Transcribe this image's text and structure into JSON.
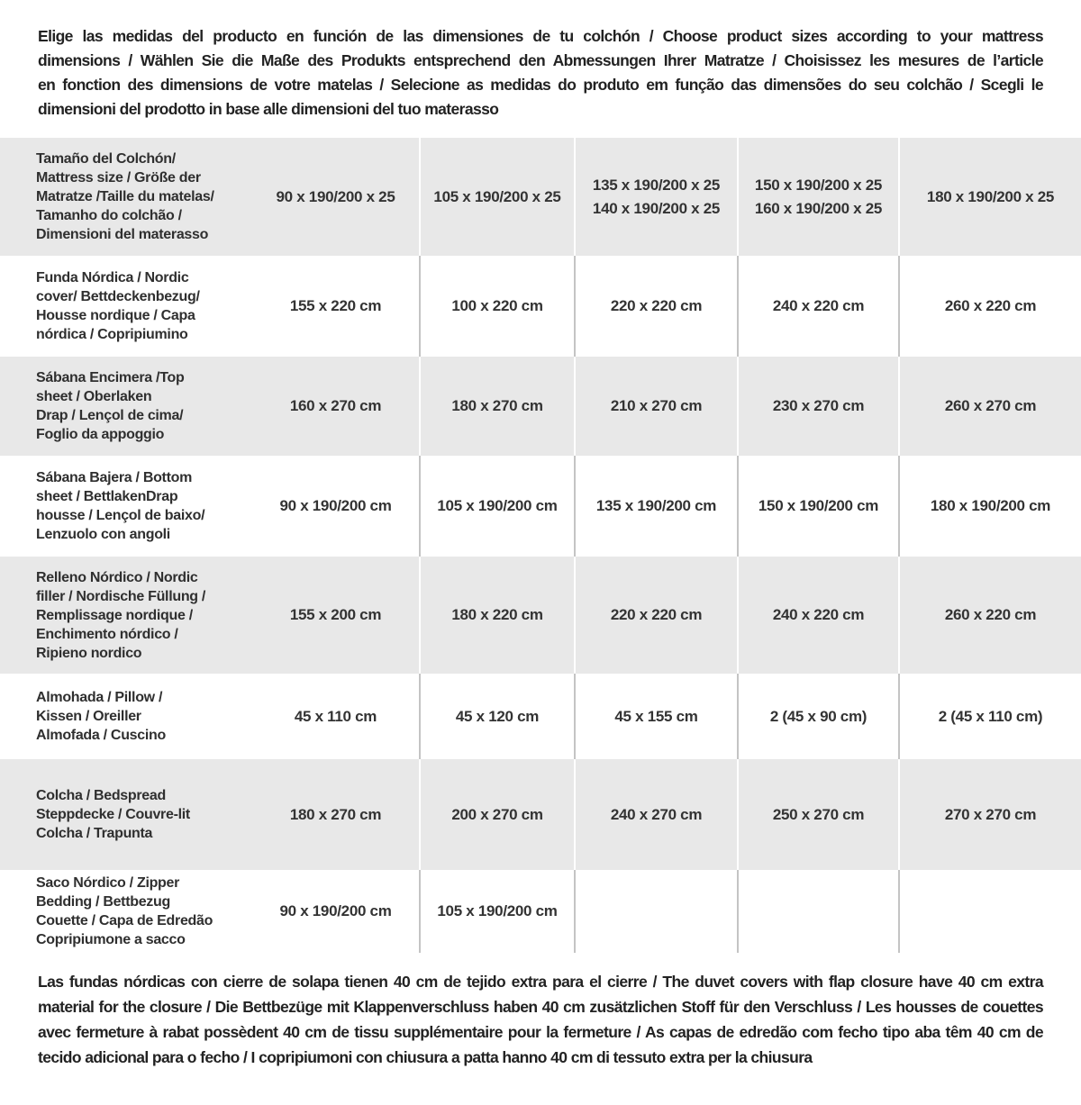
{
  "intro": {
    "lines": [
      "Elige las medidas del producto en función de las dimensiones de tu colchón / Choose product sizes according to your mattress",
      "dimensions / Wählen Sie die Maße des Produkts entsprechend den Abmessungen Ihrer Matratze / Choisissez les mesures de l’article",
      "en fonction des dimensions de votre matelas / Selecione as medidas do produto em função das dimensões do seu colchão / Scegli le",
      "dimensioni del prodotto in base alle dimensioni del tuo materasso"
    ]
  },
  "table": {
    "header": {
      "label": "Tamaño del Colchón/\nMattress size / Größe der\nMatratze /Taille du matelas/\nTamanho do colchão /\nDimensioni del materasso",
      "columns": [
        "90 x 190/200 x 25",
        "105 x 190/200 x 25",
        "135 x 190/200 x 25\n140 x 190/200 x 25",
        "150 x 190/200 x 25\n160 x 190/200 x 25",
        "180 x 190/200 x 25"
      ]
    },
    "rows": [
      {
        "label": "Funda Nórdica / Nordic\ncover/ Bettdeckenbezug/\nHousse nordique / Capa\nnórdica / Copripiumino",
        "values": [
          "155 x 220 cm",
          "100 x 220 cm",
          "220 x 220 cm",
          "240 x 220 cm",
          "260 x 220 cm"
        ]
      },
      {
        "label": "Sábana Encimera /Top\nsheet / Oberlaken\nDrap / Lençol de cima/\nFoglio da appoggio",
        "values": [
          "160 x 270 cm",
          "180 x 270 cm",
          "210 x 270 cm",
          "230 x 270 cm",
          "260 x 270 cm"
        ]
      },
      {
        "label": "Sábana Bajera / Bottom\nsheet / BettlakenDrap\nhousse / Lençol de baixo/\nLenzuolo con angoli",
        "values": [
          "90 x 190/200 cm",
          "105 x 190/200 cm",
          "135 x 190/200 cm",
          "150 x 190/200 cm",
          "180 x 190/200 cm"
        ]
      },
      {
        "label": "Relleno Nórdico / Nordic\nfiller / Nordische Füllung /\nRemplissage nordique /\nEnchimento nórdico /\nRipieno nordico",
        "values": [
          "155 x 200 cm",
          "180 x 220 cm",
          "220 x 220 cm",
          "240 x 220 cm",
          "260 x 220 cm"
        ]
      },
      {
        "label": "Almohada / Pillow /\nKissen / Oreiller\nAlmofada / Cuscino",
        "values": [
          "45 x 110 cm",
          "45 x 120 cm",
          "45 x 155 cm",
          "2 (45 x 90 cm)",
          "2 (45 x 110 cm)"
        ]
      },
      {
        "label": "Colcha / Bedspread\nSteppdecke / Couvre-lit\nColcha / Trapunta",
        "values": [
          "180 x 270 cm",
          "200 x 270 cm",
          "240 x 270 cm",
          "250 x 270 cm",
          "270 x 270 cm"
        ]
      },
      {
        "label": "Saco Nórdico / Zipper\nBedding / Bettbezug\nCouette / Capa de Edredão\nCopripiumone a sacco",
        "values": [
          "90 x 190/200 cm",
          "105 x 190/200 cm",
          "",
          "",
          ""
        ]
      }
    ]
  },
  "note": {
    "lines": [
      "Las fundas nórdicas con cierre de solapa tienen 40 cm de tejido extra para el cierre / The duvet covers with flap closure have 40 cm extra",
      "material for the closure / Die Bettbezüge mit Klappenverschluss haben 40 cm zusätzlichen Stoff für den Verschluss / Les housses de couettes",
      "avec fermeture à rabat possèdent 40 cm de tissu supplémentaire pour la fermeture / As capas de edredão com fecho tipo aba têm 40 cm de",
      "tecido adicional para o fecho / I copripiumoni con chiusura a patta hanno 40 cm di tessuto extra per la chiusura"
    ]
  },
  "colors": {
    "row_gray": "#e8e8e8",
    "divider_on_white": "#c4c4c4",
    "divider_on_gray": "#ffffff",
    "text": "#2f2f2f"
  }
}
